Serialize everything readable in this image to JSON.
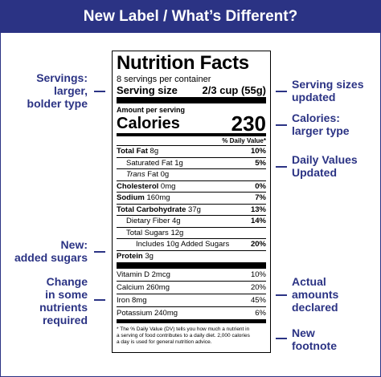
{
  "header": {
    "title": "New Label / What’s Different?"
  },
  "annotations": {
    "left": [
      {
        "lines": [
          "Servings:",
          "larger,",
          "bolder type"
        ]
      },
      {
        "lines": [
          "New:",
          "added sugars"
        ]
      },
      {
        "lines": [
          "Change",
          "in some",
          "nutrients",
          "required"
        ]
      }
    ],
    "right": [
      {
        "lines": [
          "Serving sizes",
          "updated"
        ]
      },
      {
        "lines": [
          "Calories:",
          "larger type"
        ]
      },
      {
        "lines": [
          "Daily Values",
          "Updated"
        ]
      },
      {
        "lines": [
          "Actual",
          "amounts",
          "declared"
        ]
      },
      {
        "lines": [
          "New",
          "footnote"
        ]
      }
    ]
  },
  "label": {
    "title": "Nutrition Facts",
    "servings_per_container": "8 servings per container",
    "serving_size_label": "Serving size",
    "serving_size_value": "2/3 cup (55g)",
    "amount_per_serving": "Amount per serving",
    "calories_label": "Calories",
    "calories_value": "230",
    "dv_header": "% Daily Value*",
    "rows": [
      {
        "bold_part": "Total Fat",
        "rest": " 8g",
        "pct": "10%"
      },
      {
        "italic_part": "",
        "plain_part": "Saturated Fat 1g",
        "pct": "5%"
      },
      {
        "italic_part": "Trans",
        "plain_part": " Fat 0g",
        "pct": ""
      },
      {
        "bold_part": "Cholesterol",
        "rest": " 0mg",
        "pct": "0%"
      },
      {
        "bold_part": "Sodium",
        "rest": " 160mg",
        "pct": "7%"
      },
      {
        "bold_part": "Total Carbohydrate",
        "rest": " 37g",
        "pct": "13%"
      },
      {
        "plain_part": "Dietary Fiber 4g",
        "pct": "14%"
      },
      {
        "plain_part": "Total Sugars 12g",
        "pct": ""
      },
      {
        "plain_part": "Includes 10g Added Sugars",
        "pct": "20%"
      },
      {
        "bold_part": "Protein",
        "rest": " 3g",
        "pct": ""
      }
    ],
    "vitamins": [
      {
        "name": "Vitamin D 2mcg",
        "pct": "10%"
      },
      {
        "name": "Calcium 260mg",
        "pct": "20%"
      },
      {
        "name": "Iron 8mg",
        "pct": "45%"
      },
      {
        "name": "Potassium 240mg",
        "pct": "6%"
      }
    ],
    "footnote_lines": [
      "* The % Daily Value (DV) tells you how much a nutrient in",
      "a serving of food contributes to a daily diet. 2,000 calories",
      "a day is used for general nutrition advice."
    ]
  },
  "colors": {
    "accent": "#2b3384",
    "text": "#000000",
    "background": "#ffffff"
  }
}
